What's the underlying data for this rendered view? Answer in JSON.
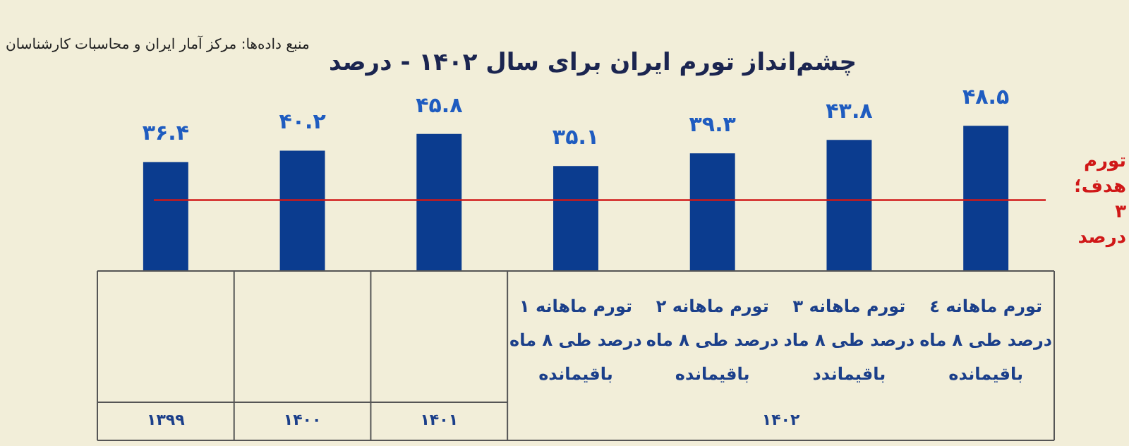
{
  "chart_data": {
    "type": "bar",
    "title": "چشم‌انداز تورم ایران برای سال ۱۴۰۲ - درصد",
    "categories": [
      null,
      null,
      null,
      "تورم ماهانه ۱\nدرصد طی ۸ ماه\nباقیمانده",
      "تورم ماهانه ۲\nدرصد طی ۸ ماه\nباقیمانده",
      "تورم ماهانه ۳\nدرصد طی ۸ ماد\nباقیماندد",
      "تورم ماهانه ٤\nدرصد طی ۸ ماه\nباقیمانده"
    ],
    "values": [
      36.4,
      40.2,
      45.8,
      35.1,
      39.3,
      43.8,
      48.5
    ],
    "value_labels": [
      "۳۶.۴",
      "۴۰.۲",
      "۴۵.۸",
      "۳۵.۱",
      "۳۹.۳",
      "۴۳.۸",
      "۴۸.۵"
    ],
    "color": "#0b3c8f",
    "tick_labels": false,
    "grid": false,
    "legend": false,
    "ref_lines": [
      {
        "axis": "y",
        "value": 23.7,
        "label": "تورم هدف؛ ۳ درصد",
        "color": "#d01818"
      }
    ],
    "annotations": [
      "منبع داده‌ها: مرکز آمار ایران و محاسبات کارشناسان",
      "۱۳۹۹",
      "۱۴۰۰",
      "۱۴۰۱",
      "۱۴۰۲"
    ]
  }
}
